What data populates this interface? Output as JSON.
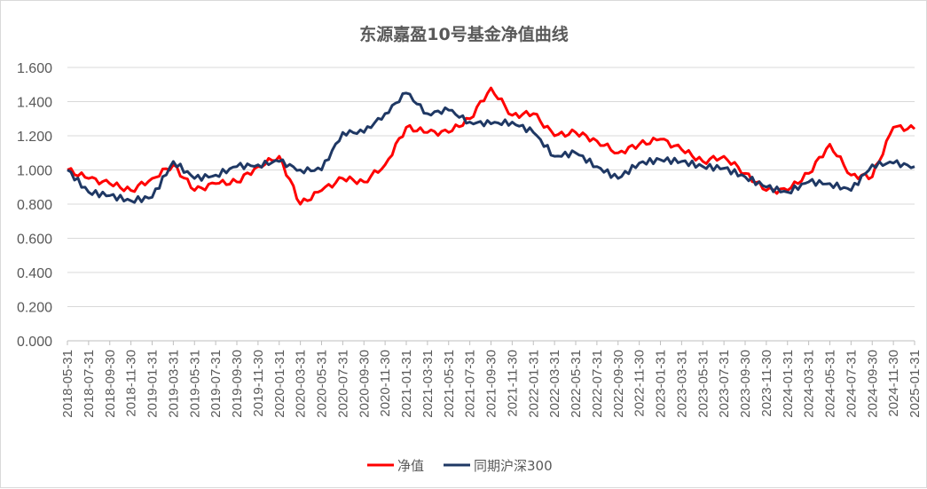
{
  "chart_data": {
    "type": "line",
    "title": "东源嘉盈10号基金净值曲线",
    "ylim": [
      0,
      1.6
    ],
    "yticks": [
      "0.000",
      "0.200",
      "0.400",
      "0.600",
      "0.800",
      "1.000",
      "1.200",
      "1.400",
      "1.600"
    ],
    "grid": true,
    "legend_position": "bottom",
    "categories": [
      "2018-05-31",
      "2018-07-31",
      "2018-09-30",
      "2018-11-30",
      "2019-01-31",
      "2019-03-31",
      "2019-05-31",
      "2019-07-31",
      "2019-09-30",
      "2019-11-30",
      "2020-01-31",
      "2020-03-31",
      "2020-05-31",
      "2020-07-31",
      "2020-09-30",
      "2020-11-30",
      "2021-01-31",
      "2021-03-31",
      "2021-05-31",
      "2021-07-31",
      "2021-09-30",
      "2021-11-30",
      "2022-01-31",
      "2022-03-31",
      "2022-05-31",
      "2022-07-31",
      "2022-09-30",
      "2022-11-30",
      "2023-01-31",
      "2023-03-31",
      "2023-05-31",
      "2023-07-31",
      "2023-09-30",
      "2023-11-30",
      "2024-01-31",
      "2024-03-31",
      "2024-05-31",
      "2024-07-31",
      "2024-09-30",
      "2024-11-30",
      "2025-01-31"
    ],
    "series": [
      {
        "name": "净值",
        "color": "#ff0000",
        "values": [
          1.0,
          0.95,
          0.92,
          0.88,
          0.95,
          1.03,
          0.88,
          0.92,
          0.93,
          1.02,
          1.08,
          0.8,
          0.88,
          0.95,
          0.93,
          1.03,
          1.25,
          1.22,
          1.22,
          1.3,
          1.48,
          1.32,
          1.33,
          1.2,
          1.22,
          1.17,
          1.1,
          1.15,
          1.18,
          1.12,
          1.05,
          1.08,
          0.98,
          0.88,
          0.88,
          0.98,
          1.15,
          0.97,
          0.96,
          1.25,
          1.24
        ]
      },
      {
        "name": "同期沪深300",
        "color": "#1f3864",
        "values": [
          1.0,
          0.87,
          0.85,
          0.82,
          0.84,
          1.05,
          0.95,
          0.97,
          1.02,
          1.03,
          1.05,
          1.0,
          1.0,
          1.22,
          1.22,
          1.33,
          1.45,
          1.33,
          1.35,
          1.28,
          1.27,
          1.28,
          1.22,
          1.08,
          1.1,
          1.02,
          0.95,
          1.04,
          1.06,
          1.05,
          1.02,
          1.01,
          0.96,
          0.9,
          0.87,
          0.93,
          0.92,
          0.88,
          1.03,
          1.04,
          1.02
        ]
      }
    ]
  }
}
